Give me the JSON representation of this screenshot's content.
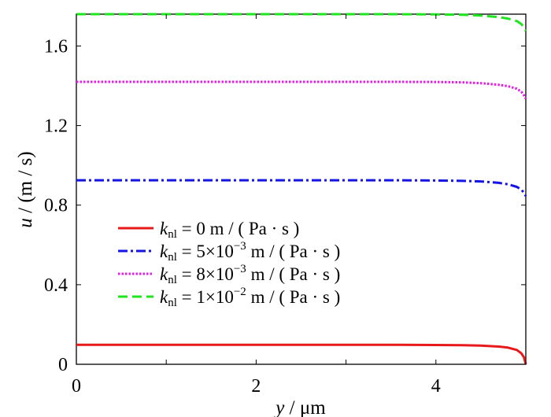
{
  "chart_data": {
    "type": "line",
    "xlim": [
      0,
      5
    ],
    "ylim": [
      0,
      1.76
    ],
    "x_ticks": [
      {
        "value": 0,
        "label": "0"
      },
      {
        "value": 2,
        "label": "2"
      },
      {
        "value": 4,
        "label": "4"
      }
    ],
    "x_minor_ticks": [
      1,
      3,
      5
    ],
    "y_ticks": [
      {
        "value": 0,
        "label": "0"
      },
      {
        "value": 0.4,
        "label": "0.4"
      },
      {
        "value": 0.8,
        "label": "0.8"
      },
      {
        "value": 1.2,
        "label": "1.2"
      },
      {
        "value": 1.6,
        "label": "1.6"
      }
    ],
    "xlabel": {
      "var": "y",
      "rest": " / μm"
    },
    "ylabel": {
      "var": "u",
      "rest": " / (m / s)"
    },
    "grid": false,
    "legend_position": "center-left",
    "x": [
      0,
      0.5,
      1,
      1.5,
      2,
      2.5,
      3,
      3.5,
      4,
      4.3,
      4.5,
      4.7,
      4.8,
      4.9,
      4.95,
      4.98,
      5
    ],
    "series": [
      {
        "legend_value": "0",
        "legend_unit": "m / ( Pa · s )",
        "color": "#e8191a",
        "dash": "solid",
        "y": [
          0.098,
          0.098,
          0.098,
          0.098,
          0.098,
          0.098,
          0.098,
          0.098,
          0.097,
          0.096,
          0.094,
          0.089,
          0.084,
          0.072,
          0.055,
          0.035,
          0.0
        ]
      },
      {
        "legend_value": "5×10",
        "legend_exp": "−3",
        "legend_unit": "m / ( Pa · s )",
        "color": "#1414e6",
        "dash": "dashdot",
        "y": [
          0.925,
          0.925,
          0.925,
          0.925,
          0.925,
          0.925,
          0.925,
          0.925,
          0.924,
          0.922,
          0.919,
          0.912,
          0.905,
          0.892,
          0.878,
          0.862,
          0.845
        ]
      },
      {
        "legend_value": "8×10",
        "legend_exp": "−3",
        "legend_unit": "m / ( Pa · s )",
        "color": "#e81ee8",
        "dash": "dotted",
        "y": [
          1.42,
          1.42,
          1.42,
          1.42,
          1.42,
          1.42,
          1.42,
          1.42,
          1.419,
          1.417,
          1.413,
          1.405,
          1.398,
          1.385,
          1.37,
          1.352,
          1.335
        ]
      },
      {
        "legend_value": "1×10",
        "legend_exp": "−2",
        "legend_unit": "m / ( Pa · s )",
        "color": "#1ee61e",
        "dash": "dashed",
        "y": [
          1.76,
          1.76,
          1.76,
          1.76,
          1.76,
          1.76,
          1.76,
          1.76,
          1.759,
          1.757,
          1.753,
          1.745,
          1.738,
          1.725,
          1.71,
          1.692,
          1.675
        ]
      }
    ]
  }
}
